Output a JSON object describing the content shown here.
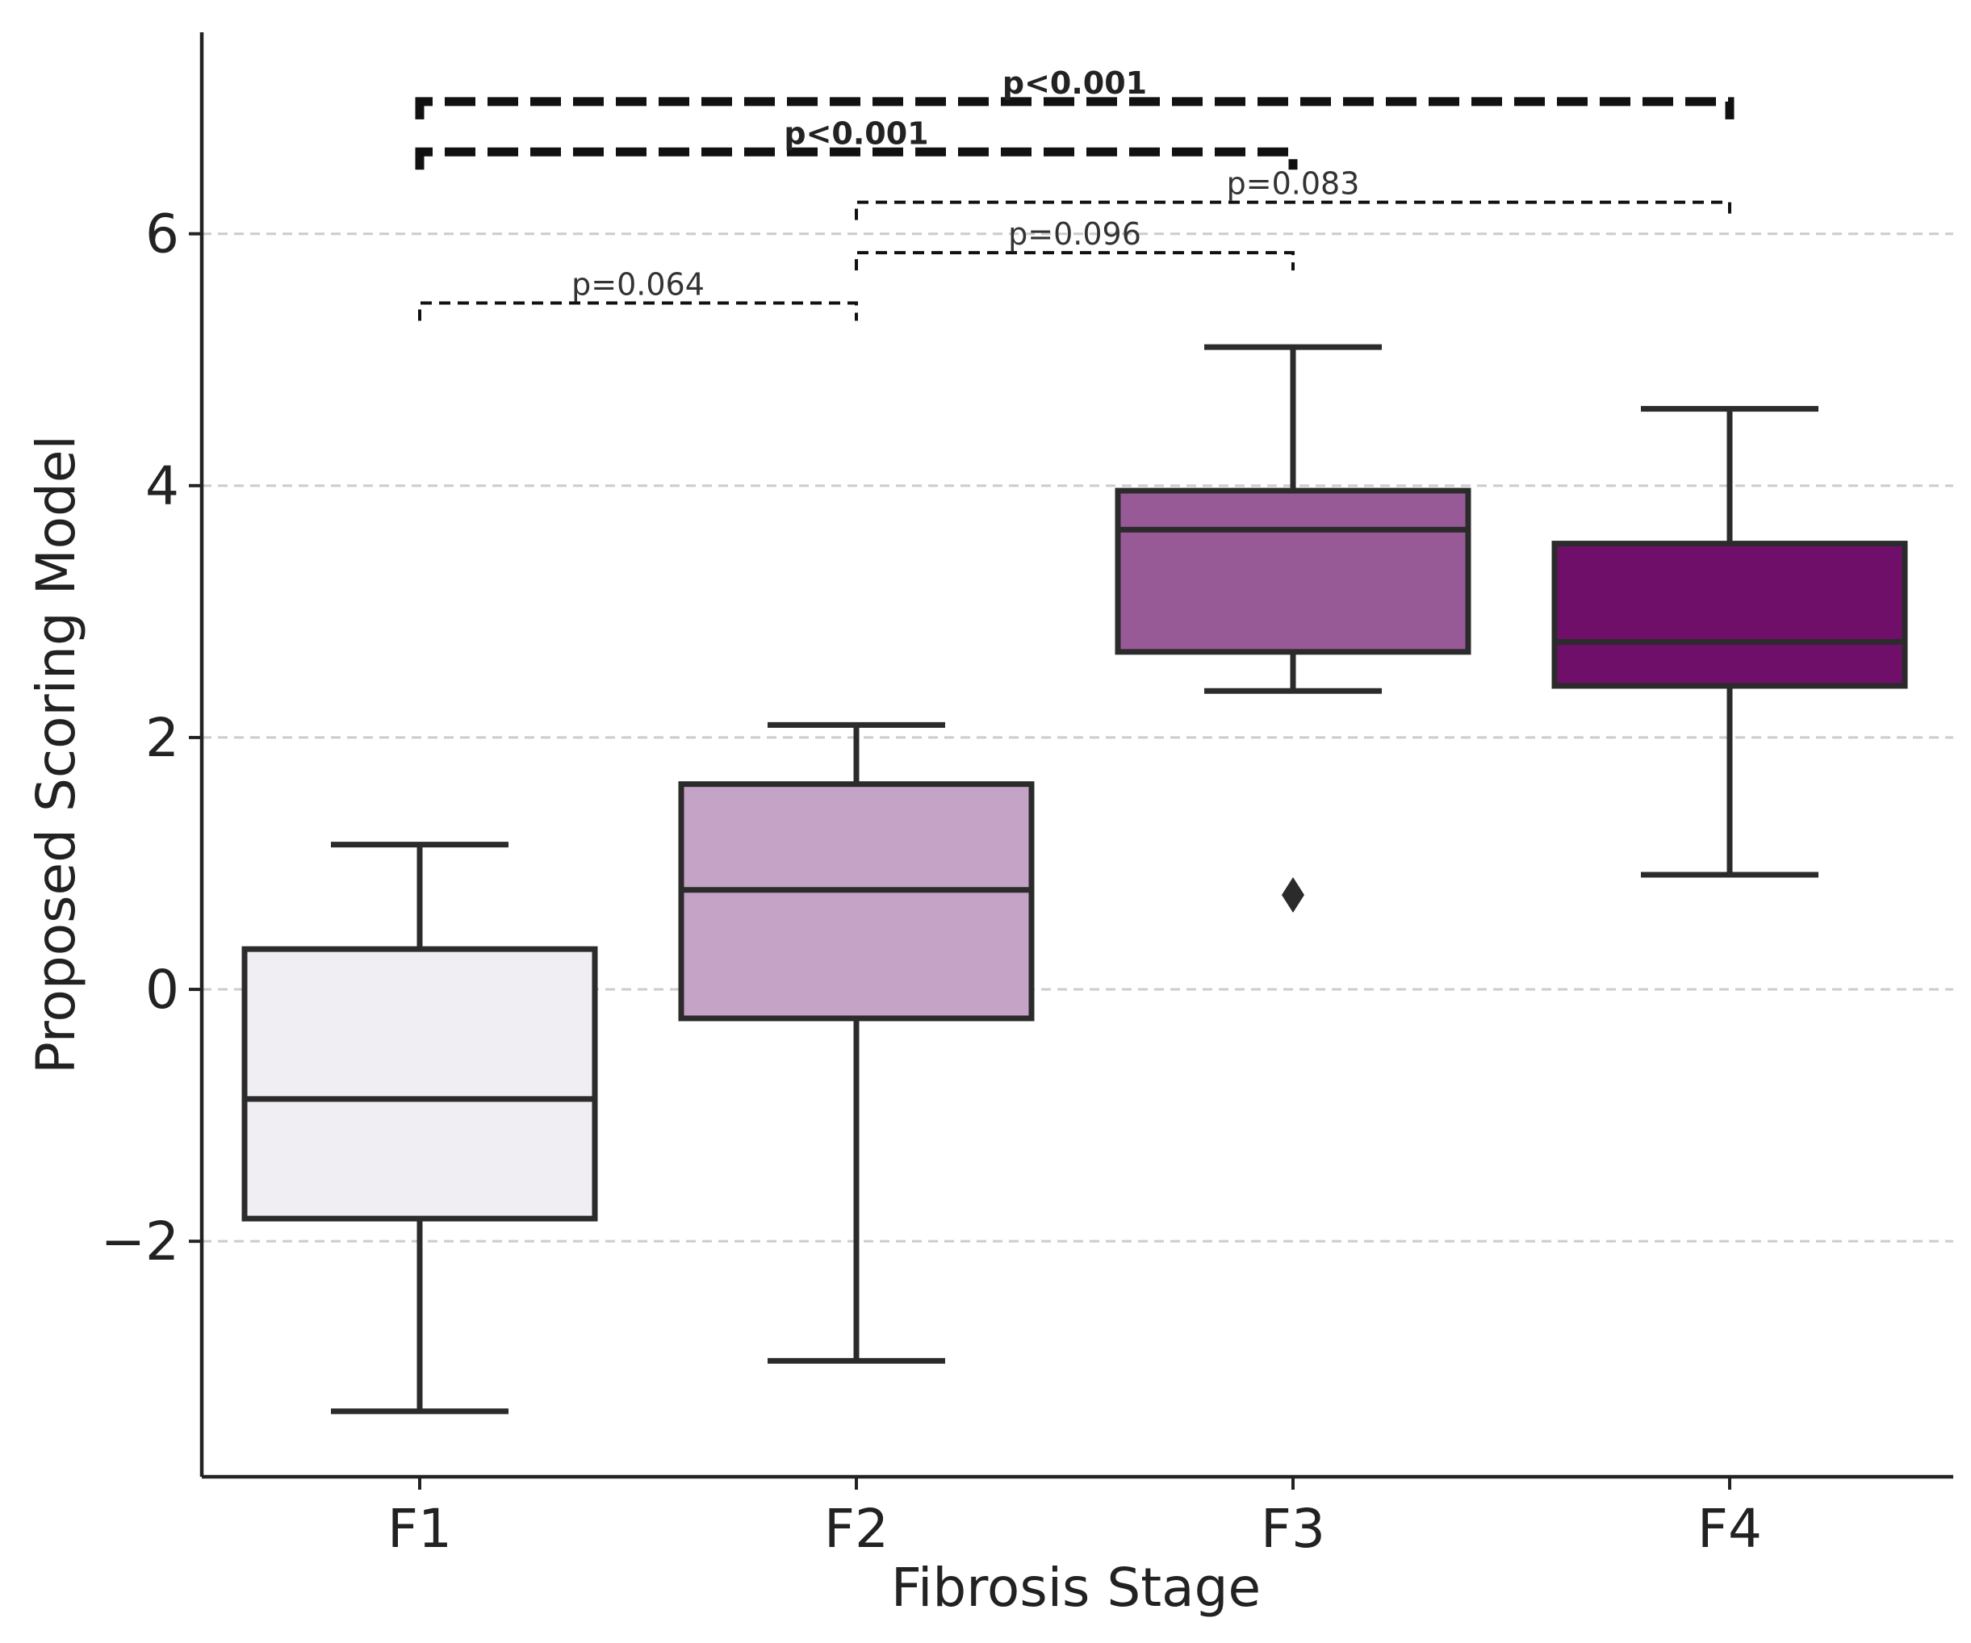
{
  "chart_data": {
    "type": "box",
    "xlabel": "Fibrosis Stage",
    "ylabel": "Proposed Scoring Model",
    "ylim": [
      -3.87,
      7.6
    ],
    "yticks": [
      -2,
      0,
      2,
      4,
      6
    ],
    "ytick_labels": [
      "−2",
      "0",
      "2",
      "4",
      "6"
    ],
    "grid": "horizontal dashed",
    "categories": [
      "F1",
      "F2",
      "F3",
      "F4"
    ],
    "boxes": [
      {
        "label": "F1",
        "whislo": -3.35,
        "q1": -1.82,
        "median": -0.87,
        "q3": 0.32,
        "whishi": 1.15,
        "color": "#f0eef3",
        "outliers": []
      },
      {
        "label": "F2",
        "whislo": -2.95,
        "q1": -0.23,
        "median": 0.79,
        "q3": 1.63,
        "whishi": 2.1,
        "color": "#c5a3c6",
        "outliers": []
      },
      {
        "label": "F3",
        "whislo": 2.37,
        "q1": 2.68,
        "median": 3.65,
        "q3": 3.96,
        "whishi": 5.1,
        "color": "#985a97",
        "outliers": [
          0.75
        ]
      },
      {
        "label": "F4",
        "whislo": 0.91,
        "q1": 2.41,
        "median": 2.76,
        "q3": 3.54,
        "whishi": 4.61,
        "color": "#6f0f6a",
        "outliers": []
      }
    ],
    "annotations": [
      {
        "from": 0,
        "to": 1,
        "y": 5.45,
        "label": "p=0.064",
        "significant": false
      },
      {
        "from": 1,
        "to": 2,
        "y": 5.85,
        "label": "p=0.096",
        "significant": false
      },
      {
        "from": 1,
        "to": 3,
        "y": 6.25,
        "label": "p=0.083",
        "significant": false
      },
      {
        "from": 0,
        "to": 2,
        "y": 6.65,
        "label": "p<0.001",
        "significant": true
      },
      {
        "from": 0,
        "to": 3,
        "y": 7.05,
        "label": "p<0.001",
        "significant": true
      }
    ]
  }
}
